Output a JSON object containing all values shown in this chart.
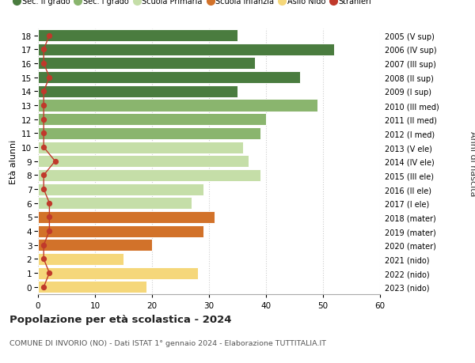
{
  "ages": [
    18,
    17,
    16,
    15,
    14,
    13,
    12,
    11,
    10,
    9,
    8,
    7,
    6,
    5,
    4,
    3,
    2,
    1,
    0
  ],
  "values": [
    35,
    52,
    38,
    46,
    35,
    49,
    40,
    39,
    36,
    37,
    39,
    29,
    27,
    31,
    29,
    20,
    15,
    28,
    19
  ],
  "right_labels": [
    "2005 (V sup)",
    "2006 (IV sup)",
    "2007 (III sup)",
    "2008 (II sup)",
    "2009 (I sup)",
    "2010 (III med)",
    "2011 (II med)",
    "2012 (I med)",
    "2013 (V ele)",
    "2014 (IV ele)",
    "2015 (III ele)",
    "2016 (II ele)",
    "2017 (I ele)",
    "2018 (mater)",
    "2019 (mater)",
    "2020 (mater)",
    "2021 (nido)",
    "2022 (nido)",
    "2023 (nido)"
  ],
  "bar_colors": [
    "#4a7c3f",
    "#4a7c3f",
    "#4a7c3f",
    "#4a7c3f",
    "#4a7c3f",
    "#8ab56e",
    "#8ab56e",
    "#8ab56e",
    "#c5dea8",
    "#c5dea8",
    "#c5dea8",
    "#c5dea8",
    "#c5dea8",
    "#d2722a",
    "#d2722a",
    "#d2722a",
    "#f5d77a",
    "#f5d77a",
    "#f5d77a"
  ],
  "stranieri_values": [
    2,
    1,
    1,
    2,
    1,
    1,
    1,
    1,
    1,
    3,
    1,
    1,
    2,
    2,
    2,
    1,
    1,
    2,
    1
  ],
  "legend_labels": [
    "Sec. II grado",
    "Sec. I grado",
    "Scuola Primaria",
    "Scuola Infanzia",
    "Asilo Nido",
    "Stranieri"
  ],
  "legend_colors": [
    "#4a7c3f",
    "#8ab56e",
    "#c5dea8",
    "#d2722a",
    "#f5d77a",
    "#c0392b"
  ],
  "title": "Popolazione per età scolastica - 2024",
  "subtitle": "COMUNE DI INVORIO (NO) - Dati ISTAT 1° gennaio 2024 - Elaborazione TUTTITALIA.IT",
  "ylabel_left": "Età alunni",
  "ylabel_right": "Anni di nascita",
  "xlim": [
    0,
    60
  ],
  "xticks": [
    0,
    10,
    20,
    30,
    40,
    50,
    60
  ],
  "background_color": "#ffffff",
  "grid_color": "#cccccc"
}
